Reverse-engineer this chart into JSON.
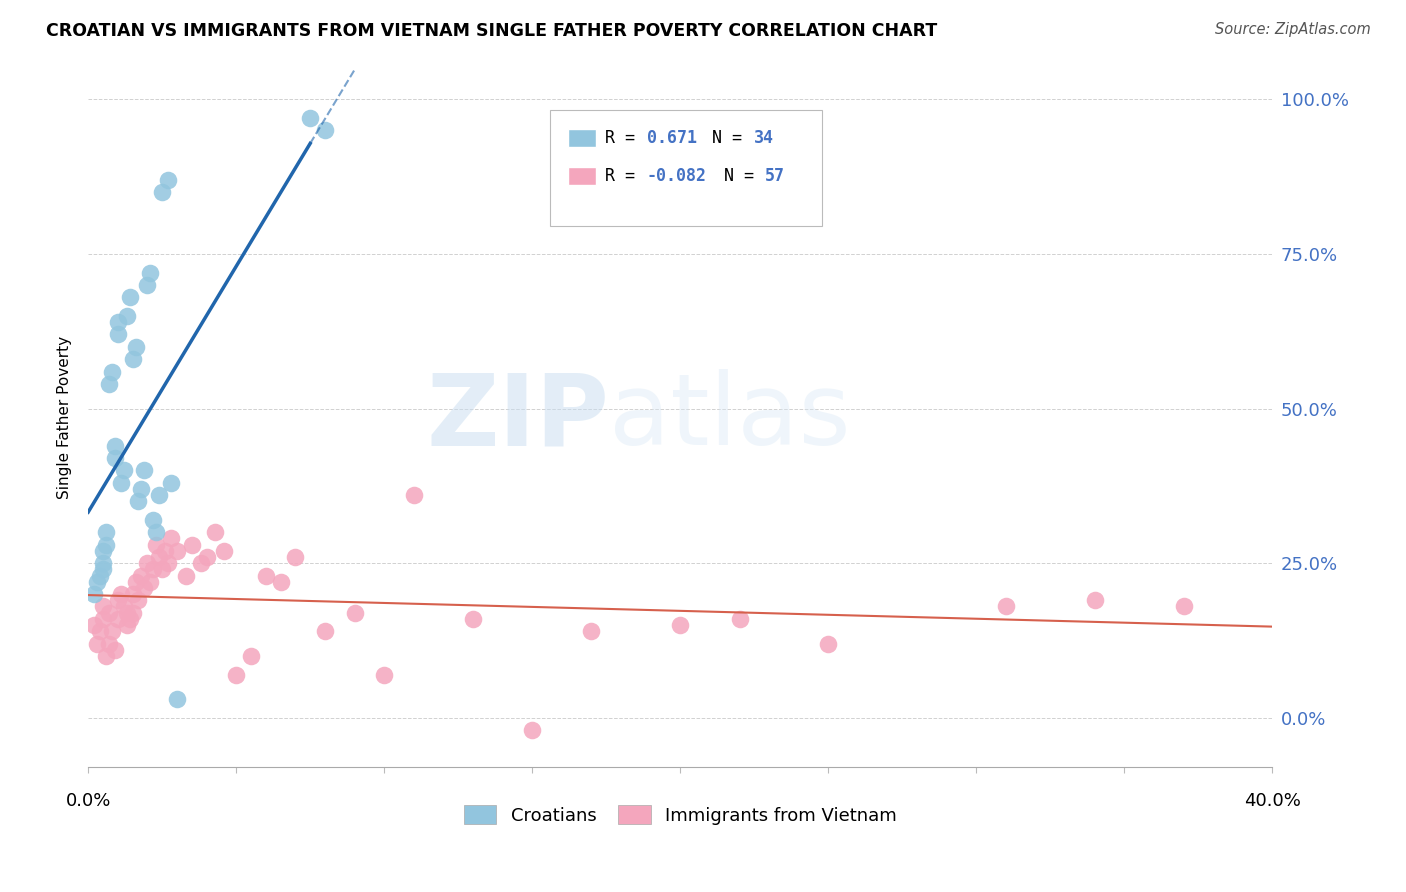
{
  "title": "CROATIAN VS IMMIGRANTS FROM VIETNAM SINGLE FATHER POVERTY CORRELATION CHART",
  "source": "Source: ZipAtlas.com",
  "ylabel": "Single Father Poverty",
  "ytick_vals": [
    0.0,
    0.25,
    0.5,
    0.75,
    1.0
  ],
  "ytick_labels": [
    "0.0%",
    "25.0%",
    "50.0%",
    "75.0%",
    "100.0%"
  ],
  "xtick_label_left": "0.0%",
  "xtick_label_right": "40.0%",
  "legend_blue_label": "Croatians",
  "legend_pink_label": "Immigrants from Vietnam",
  "legend_blue_r_label": "R =",
  "legend_blue_r_val": "0.671",
  "legend_blue_n_label": "N =",
  "legend_blue_n_val": "34",
  "legend_pink_r_label": "R =",
  "legend_pink_r_val": "-0.082",
  "legend_pink_n_label": "N =",
  "legend_pink_n_val": "57",
  "blue_color": "#92c5de",
  "blue_line_color": "#2166ac",
  "pink_color": "#f4a6bd",
  "pink_line_color": "#d6604d",
  "watermark_zip": "ZIP",
  "watermark_atlas": "atlas",
  "xlim": [
    0.0,
    0.4
  ],
  "ylim": [
    -0.08,
    1.05
  ],
  "blue_points_x": [
    0.002,
    0.003,
    0.004,
    0.005,
    0.005,
    0.005,
    0.006,
    0.006,
    0.007,
    0.008,
    0.009,
    0.009,
    0.01,
    0.01,
    0.011,
    0.012,
    0.013,
    0.014,
    0.015,
    0.016,
    0.017,
    0.018,
    0.019,
    0.02,
    0.021,
    0.022,
    0.023,
    0.024,
    0.025,
    0.027,
    0.028,
    0.03,
    0.075,
    0.08
  ],
  "blue_points_y": [
    0.2,
    0.22,
    0.23,
    0.24,
    0.25,
    0.27,
    0.28,
    0.3,
    0.54,
    0.56,
    0.42,
    0.44,
    0.62,
    0.64,
    0.38,
    0.4,
    0.65,
    0.68,
    0.58,
    0.6,
    0.35,
    0.37,
    0.4,
    0.7,
    0.72,
    0.32,
    0.3,
    0.36,
    0.85,
    0.87,
    0.38,
    0.03,
    0.97,
    0.95
  ],
  "pink_points_x": [
    0.002,
    0.003,
    0.004,
    0.005,
    0.005,
    0.006,
    0.007,
    0.007,
    0.008,
    0.009,
    0.01,
    0.01,
    0.011,
    0.012,
    0.013,
    0.013,
    0.014,
    0.015,
    0.015,
    0.016,
    0.017,
    0.018,
    0.019,
    0.02,
    0.021,
    0.022,
    0.023,
    0.024,
    0.025,
    0.026,
    0.027,
    0.028,
    0.03,
    0.033,
    0.035,
    0.038,
    0.04,
    0.043,
    0.046,
    0.05,
    0.055,
    0.06,
    0.065,
    0.07,
    0.08,
    0.09,
    0.1,
    0.11,
    0.13,
    0.15,
    0.17,
    0.2,
    0.22,
    0.25,
    0.31,
    0.34,
    0.37
  ],
  "pink_points_y": [
    0.15,
    0.12,
    0.14,
    0.16,
    0.18,
    0.1,
    0.12,
    0.17,
    0.14,
    0.11,
    0.16,
    0.19,
    0.2,
    0.18,
    0.17,
    0.15,
    0.16,
    0.2,
    0.17,
    0.22,
    0.19,
    0.23,
    0.21,
    0.25,
    0.22,
    0.24,
    0.28,
    0.26,
    0.24,
    0.27,
    0.25,
    0.29,
    0.27,
    0.23,
    0.28,
    0.25,
    0.26,
    0.3,
    0.27,
    0.07,
    0.1,
    0.23,
    0.22,
    0.26,
    0.14,
    0.17,
    0.07,
    0.36,
    0.16,
    -0.02,
    0.14,
    0.15,
    0.16,
    0.12,
    0.18,
    0.19,
    0.18
  ]
}
